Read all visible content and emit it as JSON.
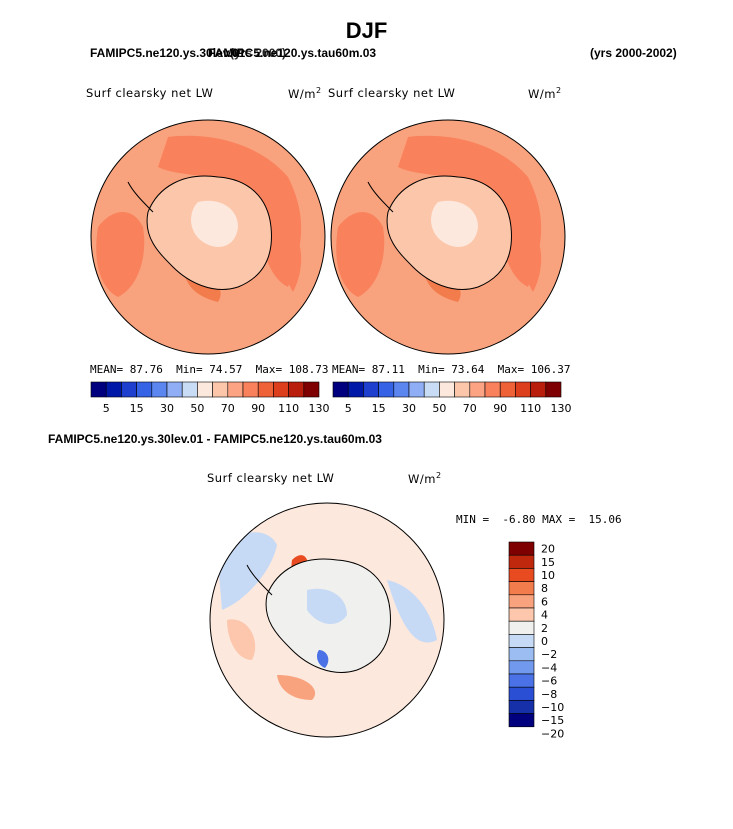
{
  "page": {
    "title": "DJF",
    "top_left_label": "FAMIPC5.ne120.ys.30lev.01",
    "top_left_label_overlap": "FAMIPC5.ne120.ys.tau60m.03",
    "top_mid_label": "(yrs 2000)",
    "top_right_label": "(yrs 2000-2002)",
    "diff_label": "FAMIPC5.ne120.ys.30lev.01 - FAMIPC5.ne120.ys.tau60m.03"
  },
  "colors": {
    "seq": [
      "#00007f",
      "#0018a8",
      "#1f3fcf",
      "#3663e6",
      "#5b85ef",
      "#8faef5",
      "#c9dcf6",
      "#fde8dd",
      "#fcc6aa",
      "#fba382",
      "#f9825d",
      "#ef6238",
      "#dd3e1c",
      "#b81e0b",
      "#7f0000"
    ],
    "diff": [
      "#7f0000",
      "#c0280d",
      "#e94b21",
      "#f37c4d",
      "#f9a37e",
      "#fcc7ad",
      "#f0f0ee",
      "#c7daf5",
      "#9cbdf2",
      "#7199ee",
      "#4a72e6",
      "#2a4fd4",
      "#1530a8",
      "#00007f"
    ]
  },
  "chart_data": [
    {
      "type": "heatmap",
      "panel": "left",
      "variable_label": "Surf clearsky net LW",
      "units_label": "W/m",
      "units_exp": "2",
      "stats": {
        "mean_label": "MEAN=",
        "mean": "87.76",
        "min_label": "Min=",
        "min": "74.57",
        "max_label": "Max=",
        "max": "108.73"
      },
      "colorbar_ticks": [
        "5",
        "15",
        "30",
        "50",
        "70",
        "90",
        "110",
        "130"
      ]
    },
    {
      "type": "heatmap",
      "panel": "right",
      "variable_label": "Surf clearsky net LW",
      "units_label": "W/m",
      "units_exp": "2",
      "stats": {
        "mean_label": "MEAN=",
        "mean": "87.11",
        "min_label": "Min=",
        "min": "73.64",
        "max_label": "Max=",
        "max": "106.37"
      },
      "colorbar_ticks": [
        "5",
        "15",
        "30",
        "50",
        "70",
        "90",
        "110",
        "130"
      ]
    },
    {
      "type": "heatmap",
      "panel": "difference",
      "variable_label": "Surf clearsky net LW",
      "units_label": "W/m",
      "units_exp": "2",
      "stats": {
        "min_label": "MIN =",
        "min": "-6.80",
        "max_label": "MAX =",
        "max": "15.06"
      },
      "colorbar_ticks": [
        "20",
        "15",
        "10",
        "8",
        "6",
        "4",
        "2",
        "0",
        "−2",
        "−4",
        "−6",
        "−8",
        "−10",
        "−15",
        "−20"
      ]
    }
  ]
}
